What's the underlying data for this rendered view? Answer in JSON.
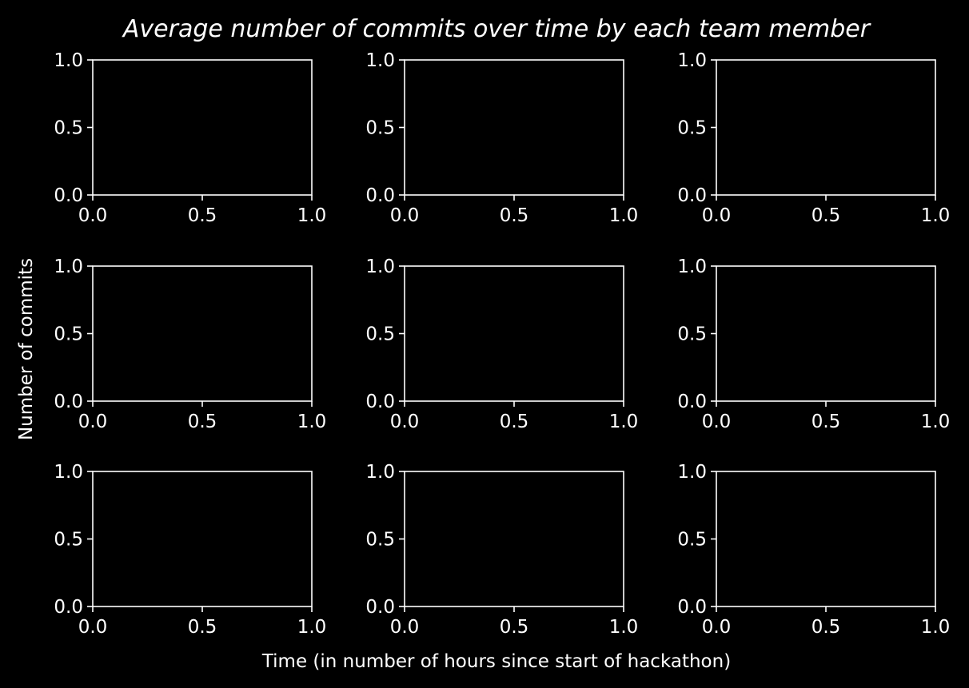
{
  "figure": {
    "background": "#000000",
    "foreground": "#ffffff",
    "title": "Average number of commits over time by each team member",
    "xlabel": "Time (in number of hours since start of hackathon)",
    "ylabel": "Number of commits"
  },
  "chart_data": [
    {
      "type": "line",
      "row": 1,
      "col": 1,
      "series": [],
      "xlim": [
        0.0,
        1.0
      ],
      "ylim": [
        0.0,
        1.0
      ],
      "xticks": [
        "0.0",
        "0.5",
        "1.0"
      ],
      "yticks": [
        "0.0",
        "0.5",
        "1.0"
      ],
      "grid": false
    },
    {
      "type": "line",
      "row": 1,
      "col": 2,
      "series": [],
      "xlim": [
        0.0,
        1.0
      ],
      "ylim": [
        0.0,
        1.0
      ],
      "xticks": [
        "0.0",
        "0.5",
        "1.0"
      ],
      "yticks": [
        "0.0",
        "0.5",
        "1.0"
      ],
      "grid": false
    },
    {
      "type": "line",
      "row": 1,
      "col": 3,
      "series": [],
      "xlim": [
        0.0,
        1.0
      ],
      "ylim": [
        0.0,
        1.0
      ],
      "xticks": [
        "0.0",
        "0.5",
        "1.0"
      ],
      "yticks": [
        "0.0",
        "0.5",
        "1.0"
      ],
      "grid": false
    },
    {
      "type": "line",
      "row": 2,
      "col": 1,
      "series": [],
      "xlim": [
        0.0,
        1.0
      ],
      "ylim": [
        0.0,
        1.0
      ],
      "xticks": [
        "0.0",
        "0.5",
        "1.0"
      ],
      "yticks": [
        "0.0",
        "0.5",
        "1.0"
      ],
      "grid": false
    },
    {
      "type": "line",
      "row": 2,
      "col": 2,
      "series": [],
      "xlim": [
        0.0,
        1.0
      ],
      "ylim": [
        0.0,
        1.0
      ],
      "xticks": [
        "0.0",
        "0.5",
        "1.0"
      ],
      "yticks": [
        "0.0",
        "0.5",
        "1.0"
      ],
      "grid": false
    },
    {
      "type": "line",
      "row": 2,
      "col": 3,
      "series": [],
      "xlim": [
        0.0,
        1.0
      ],
      "ylim": [
        0.0,
        1.0
      ],
      "xticks": [
        "0.0",
        "0.5",
        "1.0"
      ],
      "yticks": [
        "0.0",
        "0.5",
        "1.0"
      ],
      "grid": false
    },
    {
      "type": "line",
      "row": 3,
      "col": 1,
      "series": [],
      "xlim": [
        0.0,
        1.0
      ],
      "ylim": [
        0.0,
        1.0
      ],
      "xticks": [
        "0.0",
        "0.5",
        "1.0"
      ],
      "yticks": [
        "0.0",
        "0.5",
        "1.0"
      ],
      "grid": false
    },
    {
      "type": "line",
      "row": 3,
      "col": 2,
      "series": [],
      "xlim": [
        0.0,
        1.0
      ],
      "ylim": [
        0.0,
        1.0
      ],
      "xticks": [
        "0.0",
        "0.5",
        "1.0"
      ],
      "yticks": [
        "0.0",
        "0.5",
        "1.0"
      ],
      "grid": false
    },
    {
      "type": "line",
      "row": 3,
      "col": 3,
      "series": [],
      "xlim": [
        0.0,
        1.0
      ],
      "ylim": [
        0.0,
        1.0
      ],
      "xticks": [
        "0.0",
        "0.5",
        "1.0"
      ],
      "yticks": [
        "0.0",
        "0.5",
        "1.0"
      ],
      "grid": false
    }
  ]
}
